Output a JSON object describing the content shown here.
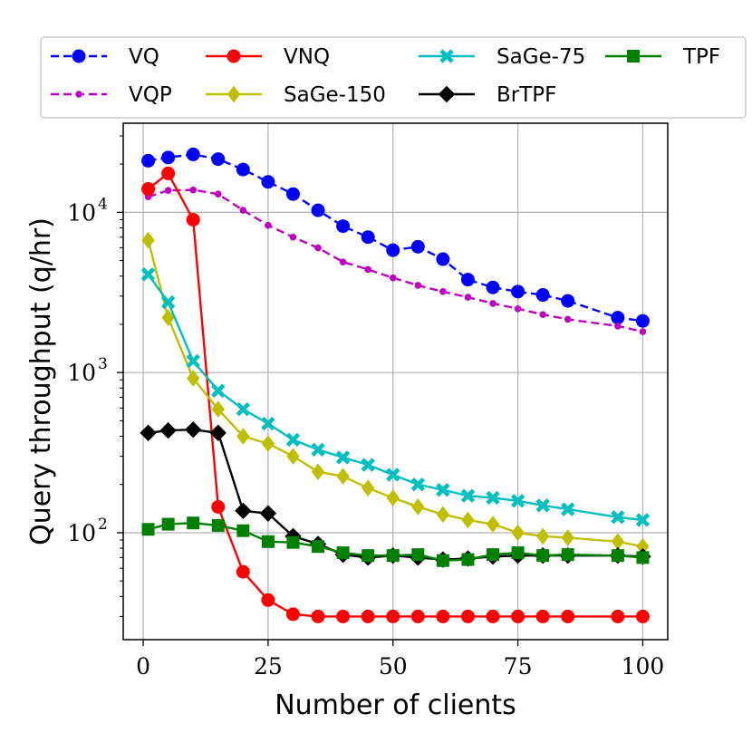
{
  "chart_data": {
    "type": "line",
    "title": "",
    "xlabel": "Number of clients",
    "ylabel": "Query throughput (q/hr)",
    "xlim": [
      -4,
      105
    ],
    "ylim": [
      21.5,
      36000
    ],
    "yscale": "log",
    "grid": true,
    "legend": "top, outside plot, 4 columns",
    "xticks": [
      {
        "value": 0,
        "label": "0"
      },
      {
        "value": 25,
        "label": "25"
      },
      {
        "value": 50,
        "label": "50"
      },
      {
        "value": 75,
        "label": "75"
      },
      {
        "value": 100,
        "label": "100"
      }
    ],
    "yticks": [
      {
        "value": 100,
        "base": "10",
        "exp": "2"
      },
      {
        "value": 1000,
        "base": "10",
        "exp": "3"
      },
      {
        "value": 10000,
        "base": "10",
        "exp": "4"
      }
    ],
    "series": [
      {
        "name": "VQ",
        "color": "#0000ff",
        "line": "dashed",
        "marker": "circle",
        "x": [
          1,
          5,
          10,
          15,
          20,
          25,
          30,
          35,
          40,
          45,
          50,
          55,
          60,
          65,
          70,
          75,
          80,
          85,
          95,
          100
        ],
        "y": [
          21000,
          22000,
          23000,
          21500,
          18500,
          15500,
          13000,
          10300,
          8200,
          7000,
          5800,
          6100,
          5100,
          3800,
          3400,
          3200,
          3050,
          2800,
          2200,
          2100
        ]
      },
      {
        "name": "VQP",
        "color": "#bf00bf",
        "line": "dashed",
        "marker": "smalldot",
        "x": [
          1,
          5,
          10,
          15,
          20,
          25,
          30,
          35,
          40,
          45,
          50,
          55,
          60,
          65,
          70,
          75,
          80,
          85,
          95,
          100
        ],
        "y": [
          12500,
          13700,
          13800,
          13000,
          10300,
          8300,
          7000,
          6000,
          4900,
          4400,
          3900,
          3500,
          3200,
          2950,
          2700,
          2500,
          2300,
          2150,
          1950,
          1800
        ]
      },
      {
        "name": "VNQ",
        "color": "#ff0000",
        "line": "solid",
        "marker": "circle",
        "x": [
          1,
          5,
          10,
          15,
          20,
          25,
          30,
          35,
          40,
          45,
          50,
          55,
          60,
          65,
          70,
          75,
          80,
          85,
          95,
          100
        ],
        "y": [
          14000,
          17500,
          9000,
          145,
          57,
          38,
          31,
          30,
          30,
          30,
          30,
          30,
          30,
          30,
          30,
          30,
          30,
          30,
          30,
          30
        ]
      },
      {
        "name": "SaGe-150",
        "color": "#bfbf00",
        "line": "solid",
        "marker": "thin-diamond",
        "x": [
          1,
          5,
          10,
          15,
          20,
          25,
          30,
          35,
          40,
          45,
          50,
          55,
          60,
          65,
          70,
          75,
          80,
          85,
          95,
          100
        ],
        "y": [
          6700,
          2200,
          920,
          590,
          400,
          360,
          300,
          240,
          225,
          190,
          165,
          145,
          130,
          120,
          113,
          100,
          95,
          93,
          88,
          82
        ]
      },
      {
        "name": "SaGe-75",
        "color": "#00bfbf",
        "line": "solid",
        "marker": "x-filled",
        "x": [
          1,
          5,
          10,
          15,
          20,
          25,
          30,
          35,
          40,
          45,
          50,
          55,
          60,
          65,
          70,
          75,
          80,
          85,
          95,
          100
        ],
        "y": [
          4100,
          2750,
          1180,
          770,
          590,
          480,
          380,
          330,
          295,
          265,
          230,
          200,
          185,
          170,
          165,
          158,
          148,
          140,
          125,
          120
        ]
      },
      {
        "name": "BrTPF",
        "color": "#000000",
        "line": "solid",
        "marker": "diamond",
        "x": [
          1,
          5,
          10,
          15,
          20,
          25,
          30,
          35,
          40,
          45,
          50,
          55,
          60,
          65,
          70,
          75,
          80,
          85,
          95,
          100
        ],
        "y": [
          420,
          435,
          440,
          420,
          137,
          132,
          95,
          85,
          73,
          70,
          72,
          70,
          68,
          69,
          71,
          72,
          72,
          72,
          72,
          71
        ]
      },
      {
        "name": "TPF",
        "color": "#008000",
        "line": "solid",
        "marker": "square",
        "x": [
          1,
          5,
          10,
          15,
          20,
          25,
          30,
          35,
          40,
          45,
          50,
          55,
          60,
          65,
          70,
          75,
          80,
          85,
          95,
          100
        ],
        "y": [
          105,
          113,
          115,
          111,
          103,
          88,
          87,
          82,
          75,
          72,
          72,
          73,
          67,
          68,
          73,
          75,
          72,
          73,
          72,
          70
        ]
      }
    ],
    "legend_order": [
      0,
      2,
      4,
      6,
      1,
      3,
      5
    ]
  }
}
